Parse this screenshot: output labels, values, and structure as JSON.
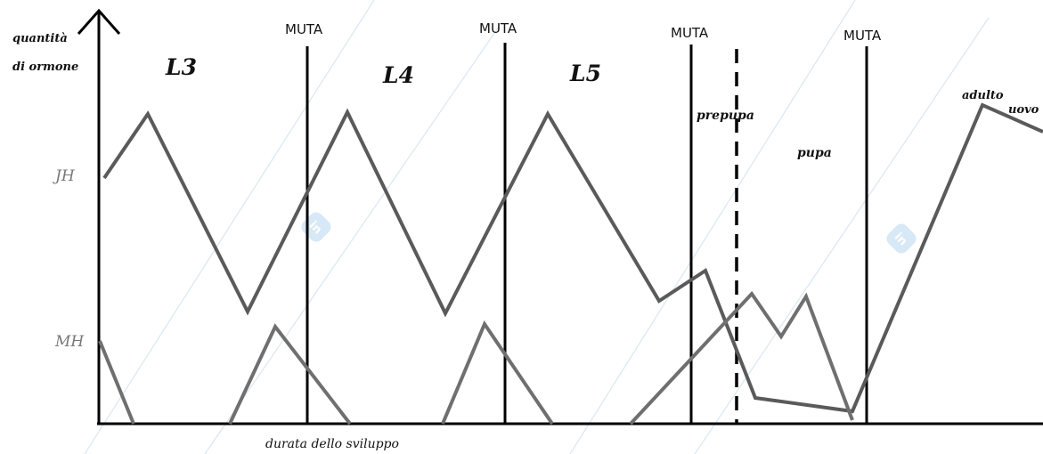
{
  "axes": {
    "y_label_line1": "quantità",
    "y_label_line2": "di ormone",
    "x_label": "durata dello sviluppo",
    "jh_tick": "JH",
    "mh_tick": "MH"
  },
  "molt_label": "MUTA",
  "stages": {
    "l3": "L3",
    "l4": "L4",
    "l5": "L5",
    "prepupa": "prepupa",
    "pupa": "pupa",
    "adulto": "adulto",
    "uovo": "uovo"
  },
  "colors": {
    "jh_line": "#5a5a5a",
    "mh_line": "#6f6f6f",
    "axis": "#000000",
    "label_gray": "#777777",
    "watermark": "#cfe3f3"
  }
}
